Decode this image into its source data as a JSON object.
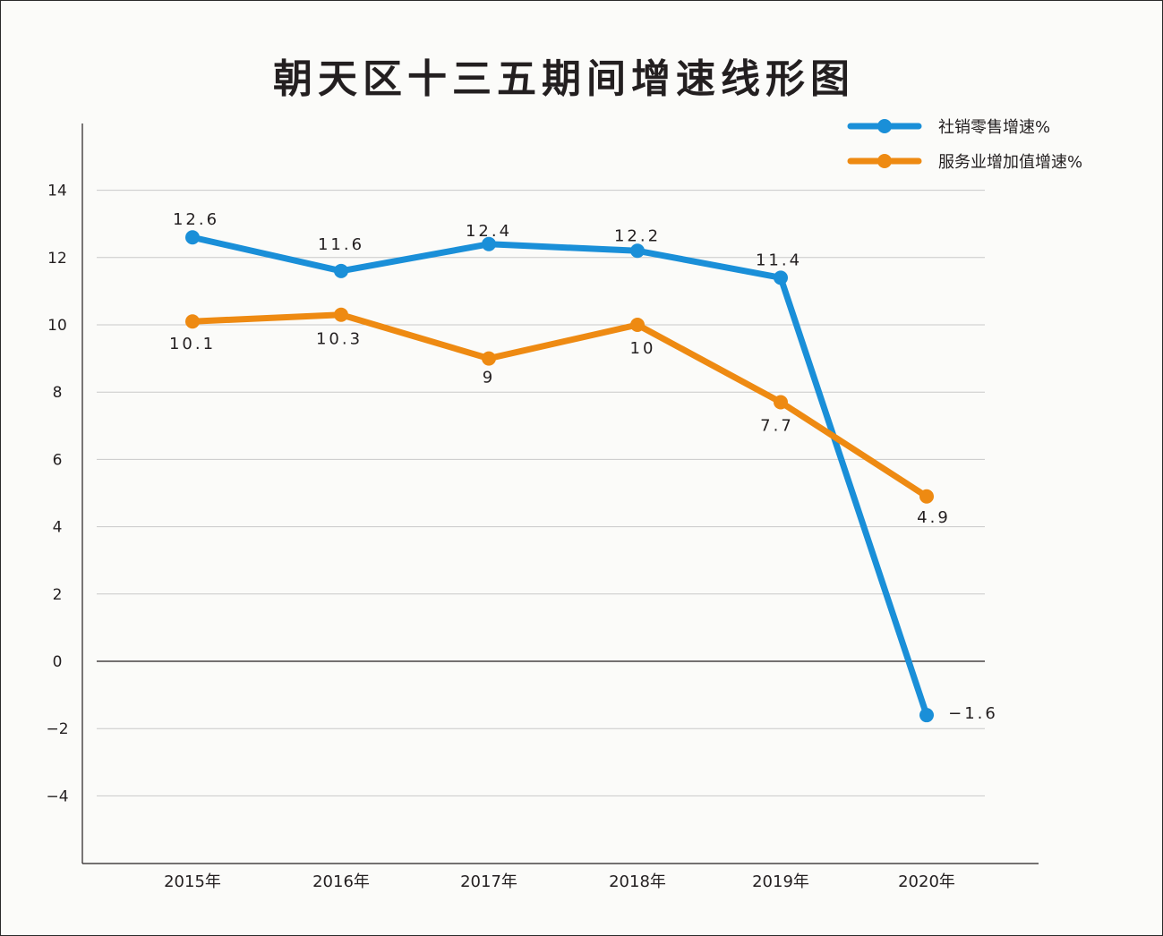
{
  "chart_data": {
    "type": "line",
    "title": "朝天区十三五期间增速线形图",
    "categories": [
      "2015年",
      "2016年",
      "2017年",
      "2018年",
      "2019年",
      "2020年"
    ],
    "y_ticks": [
      "14",
      "12",
      "10",
      "8",
      "6",
      "4",
      "2",
      "0",
      "−2",
      "−4"
    ],
    "ylim": [
      -6,
      16
    ],
    "grid": true,
    "legend_position": "top-right",
    "series": [
      {
        "name": "社销零售增速%",
        "color": "#1a8fd8",
        "values": [
          12.6,
          11.6,
          12.4,
          12.2,
          11.4,
          -1.6
        ],
        "labels": [
          "12.6",
          "11.6",
          "12.4",
          "12.2",
          "11.4",
          "−1.6"
        ]
      },
      {
        "name": "服务业增加值增速%",
        "color": "#ee8a12",
        "values": [
          10.1,
          10.3,
          9,
          10,
          7.7,
          4.9
        ],
        "labels": [
          "10.1",
          "10.3",
          "9",
          "10",
          "7.7",
          "4.9"
        ]
      }
    ]
  }
}
